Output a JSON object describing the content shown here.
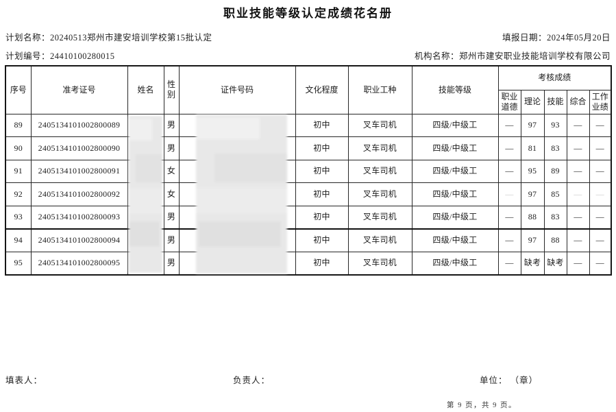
{
  "title": "职业技能等级认定成绩花名册",
  "meta": {
    "plan_name_label": "计划名称：",
    "plan_name_value": "20240513郑州市建安培训学校第15批认定",
    "report_date_label": "填报日期：",
    "report_date_value": "2024年05月20日",
    "plan_no_label": "计划编号：",
    "plan_no_value": "24410100280015",
    "org_label": "机构名称：",
    "org_value": "郑州市建安职业技能培训学校有限公司"
  },
  "table": {
    "headers": {
      "seq": "序号",
      "ticket_no": "准考证号",
      "name": "姓名",
      "gender": "性别",
      "id_number": "证件号码",
      "education": "文化程度",
      "occupation": "职业工种",
      "skill_level": "技能等级",
      "score_group": "考核成绩",
      "score_subs": [
        "职业道德",
        "理论",
        "技能",
        "综合",
        "工作业绩"
      ]
    },
    "redacted_columns": [
      "姓名",
      "证件号码"
    ],
    "rows": [
      {
        "no": "89",
        "ticket": "2405134101002800089",
        "name_redacted": true,
        "gender": "男",
        "id_redacted": true,
        "education": "初中",
        "occupation": "叉车司机",
        "level": "四级/中级工",
        "scores": [
          "—",
          "97",
          "93",
          "—",
          "—"
        ]
      },
      {
        "no": "90",
        "ticket": "2405134101002800090",
        "name_redacted": true,
        "gender": "男",
        "id_redacted": true,
        "education": "初中",
        "occupation": "叉车司机",
        "level": "四级/中级工",
        "scores": [
          "—",
          "81",
          "83",
          "—",
          "—"
        ]
      },
      {
        "no": "91",
        "ticket": "2405134101002800091",
        "name_redacted": true,
        "gender": "女",
        "id_redacted": true,
        "education": "初中",
        "occupation": "叉车司机",
        "level": "四级/中级工",
        "scores": [
          "—",
          "95",
          "89",
          "—",
          "—"
        ]
      },
      {
        "no": "92",
        "ticket": "2405134101002800092",
        "name_redacted": true,
        "gender": "女",
        "id_redacted": true,
        "education": "初中",
        "occupation": "叉车司机",
        "level": "四级/中级工",
        "scores": [
          "—",
          "97",
          "85",
          "—",
          "—"
        ],
        "faint_dashes": true
      },
      {
        "no": "93",
        "ticket": "2405134101002800093",
        "name_redacted": true,
        "gender": "男",
        "id_redacted": true,
        "education": "初中",
        "occupation": "叉车司机",
        "level": "四级/中级工",
        "scores": [
          "—",
          "88",
          "83",
          "—",
          "—"
        ]
      },
      {
        "no": "94",
        "ticket": "2405134101002800094",
        "name_redacted": true,
        "gender": "男",
        "id_redacted": true,
        "education": "初中",
        "occupation": "叉车司机",
        "level": "四级/中级工",
        "scores": [
          "—",
          "97",
          "88",
          "—",
          "—"
        ],
        "section_break": true
      },
      {
        "no": "95",
        "ticket": "2405134101002800095",
        "name_redacted": true,
        "gender": "男",
        "id_redacted": true,
        "education": "初中",
        "occupation": "叉车司机",
        "level": "四级/中级工",
        "scores": [
          "—",
          "缺考",
          "缺考",
          "—",
          "—"
        ]
      }
    ]
  },
  "footer": {
    "filler_label": "填表人：",
    "manager_label": "负责人：",
    "unit_label": "单位： （章）",
    "page_info": "第 9 页，共 9 页。"
  },
  "colors": {
    "text": "#1c1c1c",
    "border": "#262626",
    "redaction": "#e8e8e8",
    "background": "#ffffff"
  }
}
